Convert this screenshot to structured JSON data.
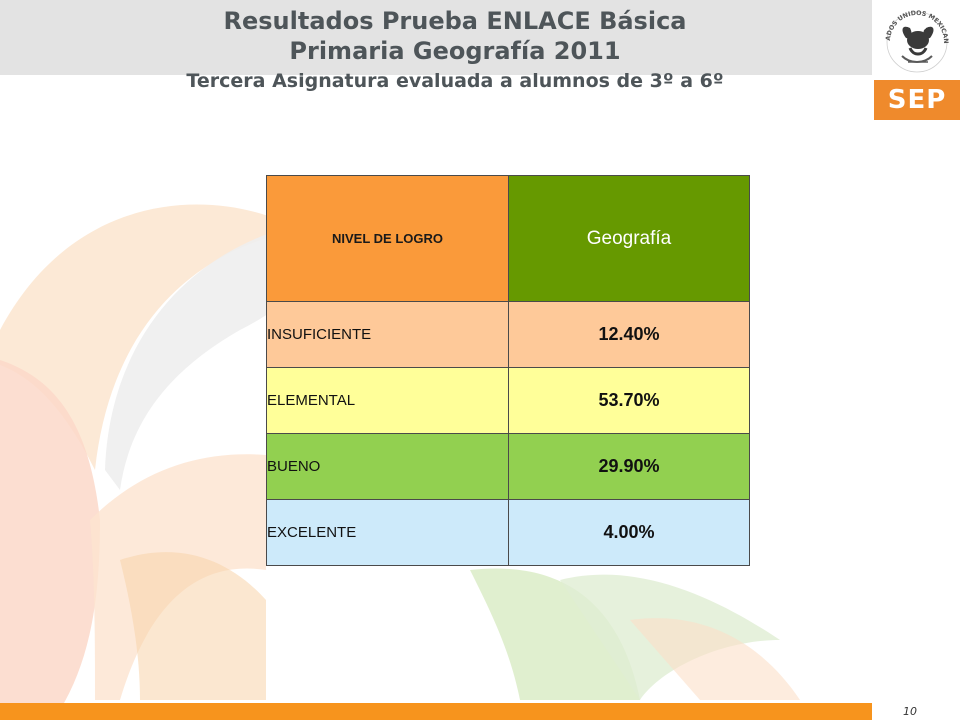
{
  "header": {
    "title_line1": "Resultados Prueba ENLACE Básica",
    "title_line2": "Primaria Geografía 2011",
    "subtitle": "Tercera  Asignatura evaluada a alumnos de  3º a 6º"
  },
  "logo": {
    "seal_text": "ESTADOS UNIDOS MEXICANOS",
    "brand": "SEP",
    "brand_color": "#ef8a2c"
  },
  "table": {
    "headers": {
      "level": "NIVEL DE LOGRO",
      "subject": "Geografía"
    },
    "header_colors": {
      "level": "#fa9a3a",
      "subject": "#669900"
    },
    "rows": [
      {
        "level": "INSUFICIENTE",
        "value": "12.40%",
        "color": "#fec999"
      },
      {
        "level": "ELEMENTAL",
        "value": "53.70%",
        "color": "#ffff99"
      },
      {
        "level": "BUENO",
        "value": "29.90%",
        "color": "#92d050"
      },
      {
        "level": "EXCELENTE",
        "value": "4.00%",
        "color": "#cdeafa"
      }
    ]
  },
  "footer": {
    "page_number": "10",
    "bar_color": "#f7941d"
  }
}
